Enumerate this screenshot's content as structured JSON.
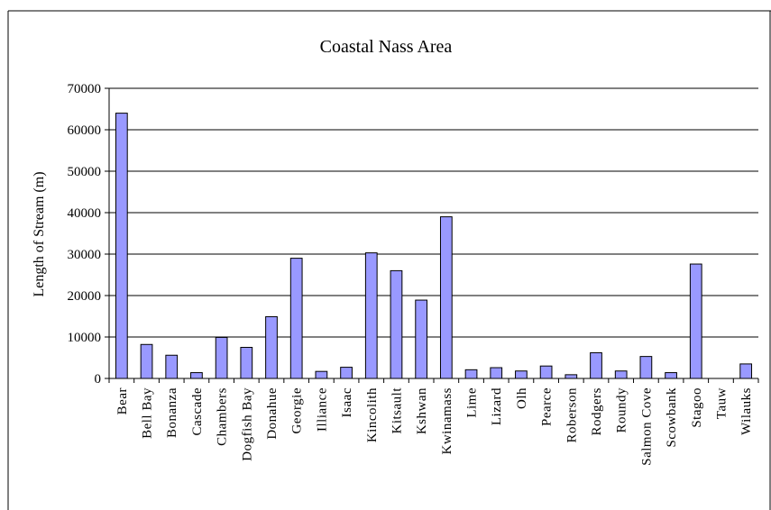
{
  "chart_data": {
    "type": "bar",
    "title": "Coastal Nass Area",
    "xlabel": "",
    "ylabel": "Length of Stream (m)",
    "ylim": [
      0,
      70000
    ],
    "yticks": [
      0,
      10000,
      20000,
      30000,
      40000,
      50000,
      60000,
      70000
    ],
    "grid": true,
    "legend": "none",
    "bar_color": "#9999ff",
    "categories": [
      "Bear",
      "Bell Bay",
      "Bonanza",
      "Cascade",
      "Chambers",
      "Dogfish Bay",
      "Donahue",
      "Georgie",
      "Illiance",
      "Isaac",
      "Kincolith",
      "Kitsault",
      "Kshwan",
      "Kwinamass",
      "Lime",
      "Lizard",
      "Olh",
      "Pearce",
      "Roberson",
      "Rodgers",
      "Roundy",
      "Salmon Cove",
      "Scowbank",
      "Stagoo",
      "Tauw",
      "Wilauks"
    ],
    "values": [
      64000,
      8200,
      5600,
      1400,
      9900,
      7500,
      14900,
      29000,
      1700,
      2700,
      30300,
      26000,
      18900,
      39000,
      2100,
      2600,
      1800,
      3000,
      900,
      6200,
      1800,
      5300,
      1400,
      27600,
      0,
      3500
    ]
  }
}
